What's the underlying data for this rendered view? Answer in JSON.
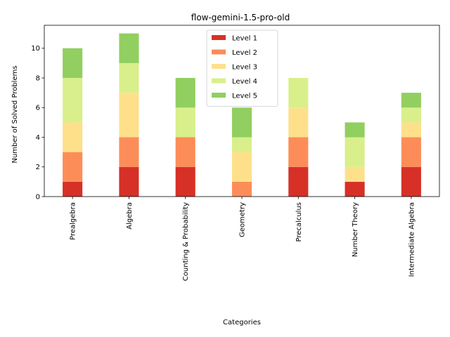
{
  "chart_data": {
    "type": "bar",
    "stacked": true,
    "title": "flow-gemini-1.5-pro-old",
    "xlabel": "Categories",
    "ylabel": "Number of Solved Problems",
    "ylim": [
      0,
      11.55
    ],
    "yticks": [
      0,
      2,
      4,
      6,
      8,
      10
    ],
    "categories": [
      "Prealgebra",
      "Algebra",
      "Counting & Probability",
      "Geometry",
      "Precalculus",
      "Number Theory",
      "Intermediate Algebra"
    ],
    "series": [
      {
        "name": "Level 1",
        "color": "#d73027",
        "values": [
          1,
          2,
          2,
          0,
          2,
          1,
          2
        ]
      },
      {
        "name": "Level 2",
        "color": "#fc8d59",
        "values": [
          2,
          2,
          2,
          1,
          2,
          0,
          2
        ]
      },
      {
        "name": "Level 3",
        "color": "#fee08b",
        "values": [
          2,
          3,
          0,
          2,
          2,
          1,
          1
        ]
      },
      {
        "name": "Level 4",
        "color": "#d9ef8b",
        "values": [
          3,
          2,
          2,
          1,
          2,
          2,
          1
        ]
      },
      {
        "name": "Level 5",
        "color": "#91cf60",
        "values": [
          2,
          2,
          2,
          2,
          0,
          1,
          1
        ]
      }
    ],
    "grid": false,
    "legend_position": "top-center"
  }
}
